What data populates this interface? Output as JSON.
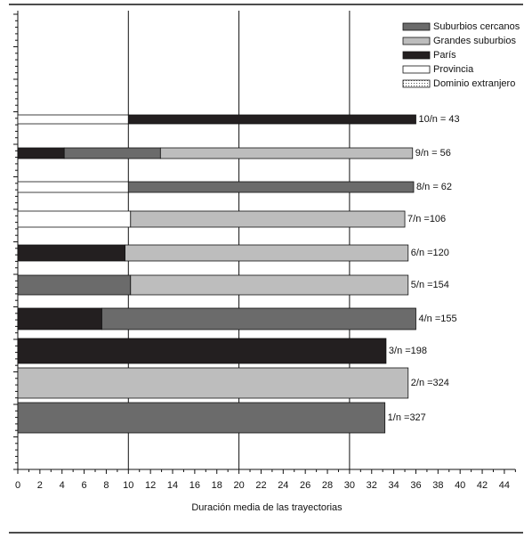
{
  "chart_data": {
    "type": "stacked_barh",
    "xlabel": "Duración media de las trayectorias",
    "categories": [
      "1/n =327",
      "2/n =324",
      "3/n =198",
      "4/n =155",
      "5/n =154",
      "6/n =120",
      "7/n =106",
      "8/n = 62",
      "9/n = 56",
      "10/n = 43"
    ],
    "series": [
      {
        "name": "Suburbios cercanos",
        "color": "#6b6b6b",
        "values": [
          33.2,
          null,
          null,
          28.4,
          10.2,
          null,
          null,
          25.8,
          8.7,
          null
        ]
      },
      {
        "name": "Grandes suburbios",
        "color": "#bdbdbd",
        "values": [
          null,
          35.3,
          null,
          null,
          25.1,
          25.6,
          24.8,
          null,
          22.8,
          null
        ]
      },
      {
        "name": "París",
        "color": "#231f20",
        "values": [
          null,
          null,
          33.3,
          7.6,
          null,
          9.7,
          null,
          null,
          4.2,
          26
        ]
      },
      {
        "name": "Provincia",
        "color": "#ffffff",
        "values": [
          null,
          null,
          null,
          null,
          null,
          null,
          10.2,
          10,
          null,
          10
        ]
      },
      {
        "name": "Dominio extranjero",
        "color": "#dcdcdc",
        "values": [
          null,
          null,
          null,
          null,
          null,
          null,
          null,
          null,
          null,
          null
        ]
      }
    ],
    "xlim": [
      0,
      45
    ],
    "xticks": [
      0,
      2,
      4,
      6,
      8,
      10,
      12,
      14,
      16,
      18,
      20,
      22,
      24,
      26,
      28,
      30,
      32,
      34,
      36,
      38,
      40,
      42,
      44
    ],
    "grid_lines": [
      10,
      20,
      30
    ]
  }
}
